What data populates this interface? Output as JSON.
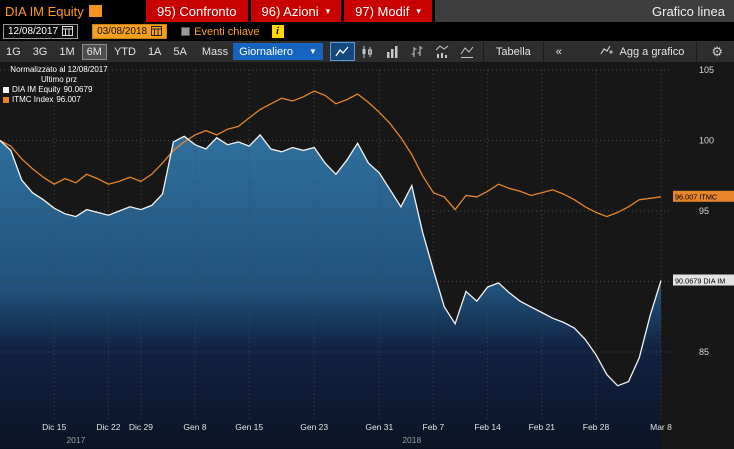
{
  "titlebar": {
    "security": "DIA IM Equity",
    "screen_title": "Grafico linea",
    "menu_buttons": [
      {
        "label": "95) Confronto",
        "caret": false
      },
      {
        "label": "96) Azioni",
        "caret": true
      },
      {
        "label": "97) Modif",
        "caret": true
      }
    ]
  },
  "daterow": {
    "date_from": "12/08/2017",
    "date_to": "03/08/2018",
    "events_label": "Eventi chiave",
    "info_icon": "i"
  },
  "toolbar": {
    "periods": [
      "1G",
      "3G",
      "1M",
      "6M",
      "YTD",
      "1A",
      "5A"
    ],
    "selected_period": "6M",
    "mass_label": "Mass",
    "frequency_value": "Giornaliero",
    "chart_type_icons": [
      "line-chart-icon",
      "candlestick-icon",
      "bar-chart-icon",
      "ohlc-icon",
      "volume-icon",
      "dual-axis-icon"
    ],
    "selected_icon": "line-chart-icon",
    "table_label": "Tabella",
    "collapse_label": "«",
    "add_to_chart_label": "Agg a grafico"
  },
  "icons": {
    "caret_down": "▾",
    "dropdown_caret": "▼",
    "gear": "⚙"
  },
  "chart_data": {
    "type": "line",
    "normalized_label": "Normalizzato al 12/08/2017",
    "last_price_label": "Ultimo prz",
    "legend_position": "top-left",
    "grid": true,
    "y_ticks": [
      105,
      100,
      95,
      90,
      85
    ],
    "ylim": [
      81.5,
      106
    ],
    "x_ticks": [
      {
        "position": 5,
        "label": "Dic 15"
      },
      {
        "position": 10,
        "label": "Dic 22"
      },
      {
        "position": 13,
        "label": "Dic 29"
      },
      {
        "position": 18,
        "label": "Gen 8"
      },
      {
        "position": 23,
        "label": "Gen 15"
      },
      {
        "position": 29,
        "label": "Gen 23"
      },
      {
        "position": 35,
        "label": "Gen 31"
      },
      {
        "position": 40,
        "label": "Feb 7"
      },
      {
        "position": 45,
        "label": "Feb 14"
      },
      {
        "position": 50,
        "label": "Feb 21"
      },
      {
        "position": 55,
        "label": "Feb 28"
      },
      {
        "position": 61,
        "label": "Mar 8"
      }
    ],
    "year_labels": [
      {
        "position": 7,
        "label": "2017"
      },
      {
        "position": 38,
        "label": "2018"
      }
    ],
    "series": [
      {
        "name": "DIA IM Equity",
        "last_value": 90.0679,
        "axis_badge": "90.0679 DIA IM",
        "color": "#f2f2f2",
        "badge_bg": "#e4e4e4",
        "fill_area": true,
        "values": [
          100.0,
          99.3,
          97.2,
          96.3,
          95.8,
          95.2,
          94.8,
          94.6,
          95.1,
          94.9,
          94.7,
          95.0,
          95.3,
          95.1,
          95.4,
          96.2,
          99.9,
          100.3,
          99.7,
          99.4,
          100.2,
          99.7,
          99.9,
          99.6,
          100.4,
          99.4,
          99.2,
          99.5,
          99.3,
          99.5,
          98.4,
          97.6,
          98.6,
          99.8,
          98.4,
          97.7,
          96.5,
          95.3,
          96.8,
          93.5,
          90.8,
          88.2,
          87.0,
          89.3,
          88.6,
          89.6,
          89.9,
          89.2,
          88.6,
          88.2,
          87.8,
          87.4,
          87.1,
          86.7,
          85.9,
          84.8,
          83.4,
          82.6,
          82.9,
          84.6,
          87.6,
          90.0679
        ]
      },
      {
        "name": "ITMC Index",
        "last_value": 96.007,
        "axis_badge": "96.007 ITMC",
        "color": "#e8842a",
        "badge_bg": "#e8842a",
        "fill_area": false,
        "values": [
          100.0,
          99.6,
          98.7,
          98.0,
          97.4,
          96.9,
          97.3,
          97.0,
          97.6,
          97.3,
          96.9,
          97.1,
          97.4,
          97.1,
          97.6,
          98.4,
          99.3,
          99.9,
          100.4,
          100.7,
          100.4,
          100.8,
          101.0,
          101.6,
          102.2,
          102.6,
          103.0,
          102.8,
          103.1,
          103.5,
          103.2,
          102.6,
          102.9,
          103.3,
          102.7,
          102.0,
          101.2,
          100.2,
          99.0,
          97.5,
          96.3,
          96.0,
          95.1,
          96.1,
          96.0,
          96.4,
          96.9,
          96.6,
          96.4,
          96.1,
          96.3,
          96.5,
          96.2,
          95.8,
          95.3,
          94.9,
          94.6,
          94.9,
          95.3,
          95.8,
          95.9,
          96.007
        ]
      }
    ]
  }
}
